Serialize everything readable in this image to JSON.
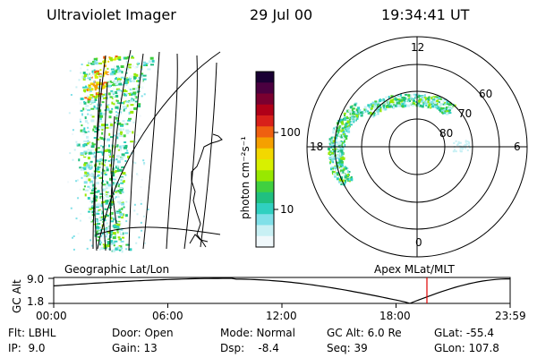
{
  "header": {
    "instrument": "Ultraviolet Imager",
    "date": "29 Jul 00",
    "time": "19:34:41 UT"
  },
  "colorbar": {
    "unit_label": "photon cm⁻²s⁻¹",
    "ticks": [
      "100",
      "10"
    ],
    "scale": "log",
    "colors": [
      "#1a0033",
      "#4b0040",
      "#7a0030",
      "#b00018",
      "#d8201a",
      "#ef6010",
      "#f5a000",
      "#f2d800",
      "#d8f000",
      "#98e800",
      "#40d040",
      "#20c080",
      "#30d0c0",
      "#80e0e8",
      "#c8f0f4",
      "#f0f8fb"
    ]
  },
  "polar_plot": {
    "clock_labels": {
      "top": "12",
      "left": "18",
      "right": "6",
      "bottom": "0"
    },
    "lat_labels": [
      "60",
      "70",
      "80"
    ]
  },
  "map_labels": {
    "left": "Geographic Lat/Lon",
    "right": "Apex MLat/MLT"
  },
  "altitude_plot": {
    "axis_title": "GC Alt",
    "y_ticks": [
      "9.0",
      "1.8"
    ],
    "x_ticks": [
      "00:00",
      "06:00",
      "12:00",
      "18:00",
      "23:59"
    ],
    "current_time_marker_color": "#e00000"
  },
  "info": {
    "filter": "Flt: LBHL",
    "ip": "IP:  9.0",
    "door": "Door: Open",
    "gain": "Gain: 13",
    "mode": "Mode: Normal",
    "dsp": "Dsp:    -8.4",
    "gc_alt": "GC Alt: 6.0 Re",
    "seq": "Seq: 39",
    "glat": "GLat: -55.4",
    "glon": "GLon: 107.8"
  }
}
